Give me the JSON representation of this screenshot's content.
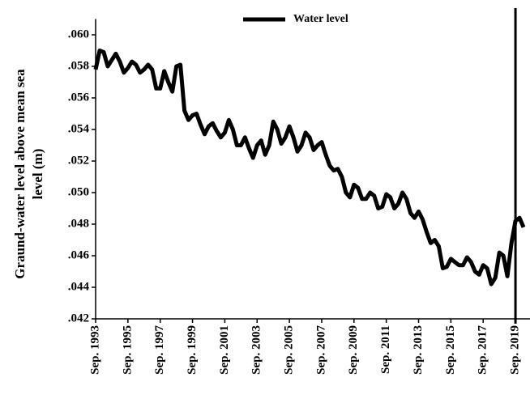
{
  "chart_data": {
    "type": "line",
    "y_label_lines": [
      "Graund-water level above mean sea",
      "level (m)"
    ],
    "legend": "top-center",
    "vline": 2019.75,
    "series": [
      {
        "name": "Water level",
        "color": "#000000",
        "x": [
          1993.75,
          1994.0,
          1994.25,
          1994.5,
          1994.75,
          1995.0,
          1995.25,
          1995.5,
          1995.75,
          1996.0,
          1996.25,
          1996.5,
          1996.75,
          1997.0,
          1997.25,
          1997.5,
          1997.75,
          1998.0,
          1998.25,
          1998.5,
          1998.75,
          1999.0,
          1999.25,
          1999.5,
          1999.75,
          2000.0,
          2000.25,
          2000.5,
          2000.75,
          2001.0,
          2001.25,
          2001.5,
          2001.75,
          2002.0,
          2002.25,
          2002.5,
          2002.75,
          2003.0,
          2003.25,
          2003.5,
          2003.75,
          2004.0,
          2004.25,
          2004.5,
          2004.75,
          2005.0,
          2005.25,
          2005.5,
          2005.75,
          2006.0,
          2006.25,
          2006.5,
          2006.75,
          2007.0,
          2007.25,
          2007.5,
          2007.75,
          2008.0,
          2008.25,
          2008.5,
          2008.75,
          2009.0,
          2009.25,
          2009.5,
          2009.75,
          2010.0,
          2010.25,
          2010.5,
          2010.75,
          2011.0,
          2011.25,
          2011.5,
          2011.75,
          2012.0,
          2012.25,
          2012.5,
          2012.75,
          2013.0,
          2013.25,
          2013.5,
          2013.75,
          2014.0,
          2014.25,
          2014.5,
          2014.75,
          2015.0,
          2015.25,
          2015.5,
          2015.75,
          2016.0,
          2016.25,
          2016.5,
          2016.75,
          2017.0,
          2017.25,
          2017.5,
          2017.75,
          2018.0,
          2018.25,
          2018.5,
          2018.75,
          2019.0,
          2019.25,
          2019.5,
          2019.75,
          2020.0,
          2020.25
        ],
        "values": [
          0.0578,
          0.059,
          0.0589,
          0.058,
          0.0584,
          0.0588,
          0.0583,
          0.0576,
          0.0579,
          0.0583,
          0.0581,
          0.0576,
          0.0578,
          0.0581,
          0.0578,
          0.0566,
          0.0566,
          0.0577,
          0.057,
          0.0564,
          0.058,
          0.0581,
          0.0552,
          0.0546,
          0.0549,
          0.055,
          0.0543,
          0.0537,
          0.0542,
          0.0544,
          0.0539,
          0.0535,
          0.0538,
          0.0546,
          0.054,
          0.053,
          0.053,
          0.0535,
          0.0528,
          0.0522,
          0.053,
          0.0533,
          0.0524,
          0.053,
          0.0545,
          0.054,
          0.0531,
          0.0535,
          0.0542,
          0.0535,
          0.0526,
          0.053,
          0.0538,
          0.0535,
          0.0527,
          0.053,
          0.0532,
          0.0524,
          0.0517,
          0.0514,
          0.0515,
          0.051,
          0.05,
          0.0497,
          0.0505,
          0.0503,
          0.0496,
          0.0496,
          0.05,
          0.0498,
          0.049,
          0.0491,
          0.0499,
          0.0497,
          0.049,
          0.0493,
          0.05,
          0.0496,
          0.0487,
          0.0484,
          0.0488,
          0.0483,
          0.0475,
          0.0468,
          0.047,
          0.0466,
          0.0452,
          0.0453,
          0.0458,
          0.0456,
          0.0454,
          0.0454,
          0.0459,
          0.0456,
          0.045,
          0.0448,
          0.0454,
          0.0452,
          0.0442,
          0.0446,
          0.0462,
          0.046,
          0.0447,
          0.0468,
          0.0482,
          0.0484,
          0.0478
        ]
      }
    ],
    "xlim": [
      1993.75,
      2020.65
    ],
    "xticks": [
      {
        "value": 1993.75,
        "label": "Sep. 1993"
      },
      {
        "value": 1995.75,
        "label": "Sep. 1995"
      },
      {
        "value": 1997.75,
        "label": "Sep. 1997"
      },
      {
        "value": 1999.75,
        "label": "Sep. 1999"
      },
      {
        "value": 2001.75,
        "label": "Sep. 2001"
      },
      {
        "value": 2003.75,
        "label": "Sep. 2003"
      },
      {
        "value": 2005.75,
        "label": "Sep. 2005"
      },
      {
        "value": 2007.75,
        "label": "Sep. 2007"
      },
      {
        "value": 2009.75,
        "label": "Sep. 2009"
      },
      {
        "value": 2011.75,
        "label": "Sep. 2011"
      },
      {
        "value": 2013.75,
        "label": "Sep. 2013"
      },
      {
        "value": 2015.75,
        "label": "Sep. 2015"
      },
      {
        "value": 2017.75,
        "label": "Sep. 2017"
      },
      {
        "value": 2019.75,
        "label": "Sep. 2019"
      }
    ],
    "ylim": [
      0.042,
      0.061
    ],
    "yticks": [
      {
        "value": 0.042,
        "label": ".042"
      },
      {
        "value": 0.044,
        "label": ".044"
      },
      {
        "value": 0.046,
        "label": ".046"
      },
      {
        "value": 0.048,
        "label": ".048"
      },
      {
        "value": 0.05,
        "label": ".050"
      },
      {
        "value": 0.052,
        "label": ".052"
      },
      {
        "value": 0.054,
        "label": ".054"
      },
      {
        "value": 0.056,
        "label": ".056"
      },
      {
        "value": 0.058,
        "label": ".058"
      },
      {
        "value": 0.06,
        "label": ".060"
      }
    ]
  }
}
